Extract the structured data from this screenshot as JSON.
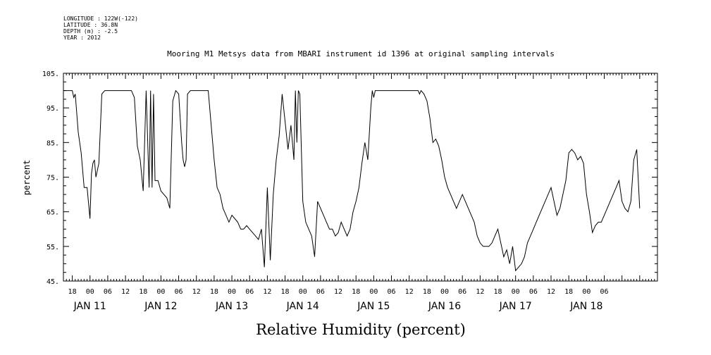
{
  "header": {
    "longitude": "LONGITUDE : 122W(-122)",
    "latitude": "LATITUDE : 36.8N",
    "depth": "DEPTH (m) : -2.5",
    "year": "YEAR : 2012"
  },
  "chart_data": {
    "type": "line",
    "title": "Mooring M1 Metsys data from MBARI instrument id 1396 at original sampling intervals",
    "xlabel": "Relative Humidity (percent)",
    "ylabel": "percent",
    "ylim": [
      45,
      105
    ],
    "yticks": [
      "45.",
      "55.",
      "65.",
      "75.",
      "85.",
      "95.",
      "105."
    ],
    "xlim_hours": [
      -9,
      192
    ],
    "x_hour_ticks": [
      "18",
      "00",
      "06",
      "12",
      "18",
      "00",
      "06",
      "12",
      "18",
      "00",
      "06",
      "12",
      "18",
      "00",
      "06",
      "12",
      "18",
      "00",
      "06",
      "12",
      "18",
      "00",
      "06",
      "12",
      "18",
      "00",
      "06",
      "12",
      "18",
      "00",
      "06"
    ],
    "x_day_labels": [
      "JAN 11",
      "JAN 12",
      "JAN 13",
      "JAN 14",
      "JAN 15",
      "JAN 16",
      "JAN 17",
      "JAN 18"
    ],
    "grid": false,
    "series": [
      {
        "x_hours_from_jan11_00": [
          -9,
          -7,
          -6,
          -5.5,
          -5,
          -4,
          -3,
          -2,
          -1,
          0,
          0.5,
          1,
          1.5,
          2,
          3,
          4,
          5,
          6,
          7,
          8,
          9,
          10,
          11,
          12,
          13,
          14,
          15,
          16,
          17,
          18,
          19,
          20,
          20.5,
          21,
          21.5,
          22,
          23,
          24,
          25,
          26,
          27,
          28,
          29,
          30,
          31,
          31.5,
          32,
          32.5,
          33,
          34,
          35,
          36,
          37,
          37.5,
          38,
          39,
          39.5,
          40,
          41,
          42,
          43,
          44,
          45,
          46,
          47,
          48,
          49,
          50,
          51,
          52,
          53,
          54,
          55,
          56,
          57,
          58,
          59,
          60,
          61,
          62,
          63,
          64,
          65,
          66,
          67,
          68,
          69,
          69.5,
          70,
          70.5,
          71,
          72,
          73,
          74,
          75,
          76,
          77,
          78,
          79,
          80,
          81,
          82,
          83,
          84,
          85,
          86,
          87,
          88,
          89,
          90,
          91,
          92,
          93,
          94,
          95,
          95.5,
          96,
          96.5,
          97,
          98,
          99,
          100,
          101,
          102,
          103,
          104,
          105,
          106,
          107,
          108,
          109,
          110,
          111,
          111.5,
          112,
          113,
          114,
          115,
          116,
          117,
          118,
          119,
          120,
          121,
          122,
          123,
          124,
          125,
          126,
          127,
          128,
          129,
          130,
          131,
          132,
          133,
          134,
          135,
          136,
          137,
          138,
          139,
          140,
          141,
          142,
          143,
          144,
          145,
          146,
          147,
          148,
          149,
          150,
          151,
          152,
          153,
          154,
          155,
          156,
          157,
          158,
          159,
          160,
          161,
          162,
          163,
          164,
          165,
          166,
          167,
          168,
          169,
          170,
          171,
          172,
          173,
          174,
          175,
          176,
          177,
          178,
          179,
          180,
          181,
          182,
          183,
          184,
          185,
          186,
          187,
          188,
          189,
          190,
          191
        ],
        "values": [
          100,
          100,
          100,
          98,
          99,
          88,
          82,
          72,
          72,
          63,
          76,
          79,
          80,
          75,
          79,
          99,
          100,
          100,
          100,
          100,
          100,
          100,
          100,
          100,
          100,
          100,
          98,
          84,
          80,
          71,
          100,
          72,
          100,
          72,
          99,
          74,
          74,
          71,
          70,
          69,
          66,
          97,
          100,
          99,
          85,
          80,
          78,
          80,
          99,
          100,
          100,
          100,
          100,
          100,
          100,
          100,
          100,
          100,
          90,
          80,
          72,
          70,
          66,
          64,
          62,
          64,
          63,
          62,
          60,
          60,
          61,
          60,
          59,
          58,
          57,
          60,
          49,
          72,
          51,
          70,
          80,
          87,
          99,
          91,
          83,
          90,
          80,
          100,
          85,
          100,
          99,
          68,
          62,
          60,
          58,
          52,
          68,
          66,
          64,
          62,
          60,
          60,
          58,
          59,
          62,
          60,
          58,
          60,
          65,
          68,
          72,
          79,
          85,
          80,
          95,
          100,
          98,
          100,
          100,
          100,
          100,
          100,
          100,
          100,
          100,
          100,
          100,
          100,
          100,
          100,
          100,
          100,
          100,
          99,
          100,
          99,
          97,
          92,
          85,
          86,
          84,
          80,
          75,
          72,
          70,
          68,
          66,
          68,
          70,
          68,
          66,
          64,
          62,
          58,
          56,
          55,
          55,
          55,
          56,
          58,
          60,
          56,
          52,
          54,
          50,
          55,
          48,
          49,
          50,
          52,
          56,
          58,
          60,
          62,
          64,
          66,
          68,
          70,
          72,
          68,
          64,
          66,
          70,
          74,
          82,
          83,
          82,
          80,
          81,
          79,
          70,
          65,
          59,
          61,
          62,
          62,
          64,
          66,
          68,
          70,
          72,
          74,
          68,
          66,
          65,
          68,
          80,
          83,
          66
        ]
      }
    ]
  }
}
